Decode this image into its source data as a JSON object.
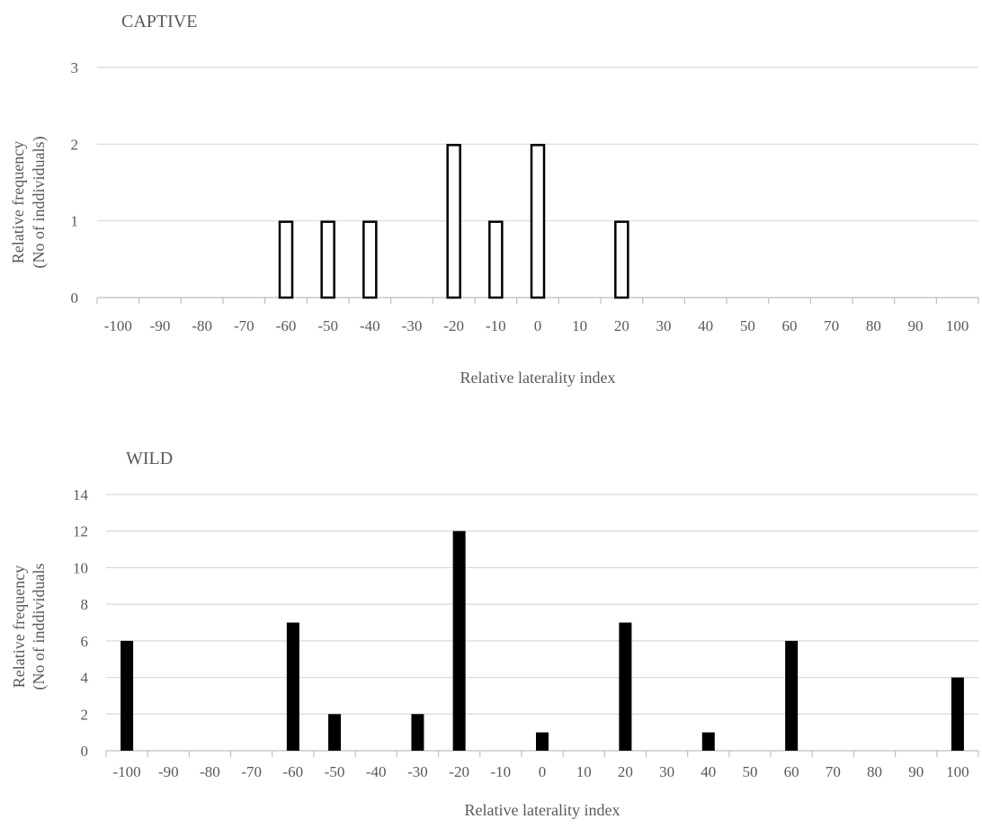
{
  "chart_data": [
    {
      "type": "bar",
      "title": "CAPTIVE",
      "xlabel": "Relative laterality index",
      "ylabel_lines": [
        "Relative frequency",
        "(No of inddividuals)"
      ],
      "categories": [
        "-100",
        "-90",
        "-80",
        "-70",
        "-60",
        "-50",
        "-40",
        "-30",
        "-20",
        "-10",
        "0",
        "10",
        "20",
        "30",
        "40",
        "50",
        "60",
        "70",
        "80",
        "90",
        "100"
      ],
      "values": [
        0,
        0,
        0,
        0,
        1,
        1,
        1,
        0,
        2,
        1,
        2,
        0,
        1,
        0,
        0,
        0,
        0,
        0,
        0,
        0,
        0
      ],
      "yticks": [
        "0",
        "1",
        "2",
        "3"
      ],
      "ylim": [
        0,
        3
      ],
      "grid": true,
      "bar_style": "outline"
    },
    {
      "type": "bar",
      "title": "WILD",
      "xlabel": "Relative laterality index",
      "ylabel_lines": [
        "Relative frequency",
        "(No of inddividuals"
      ],
      "categories": [
        "-100",
        "-90",
        "-80",
        "-70",
        "-60",
        "-50",
        "-40",
        "-30",
        "-20",
        "-10",
        "0",
        "10",
        "20",
        "30",
        "40",
        "50",
        "60",
        "70",
        "80",
        "90",
        "100"
      ],
      "values": [
        6,
        0,
        0,
        0,
        7,
        2,
        0,
        2,
        12,
        0,
        1,
        0,
        7,
        0,
        1,
        0,
        6,
        0,
        0,
        0,
        4
      ],
      "yticks": [
        "0",
        "2",
        "4",
        "6",
        "8",
        "10",
        "12",
        "14"
      ],
      "ylim": [
        0,
        14
      ],
      "grid": true,
      "bar_style": "filled"
    }
  ],
  "colors": {
    "grid": "#d9d9d9",
    "axis": "#bfbfbf",
    "text": "#595959",
    "bar": "#000000",
    "background": "#ffffff"
  }
}
